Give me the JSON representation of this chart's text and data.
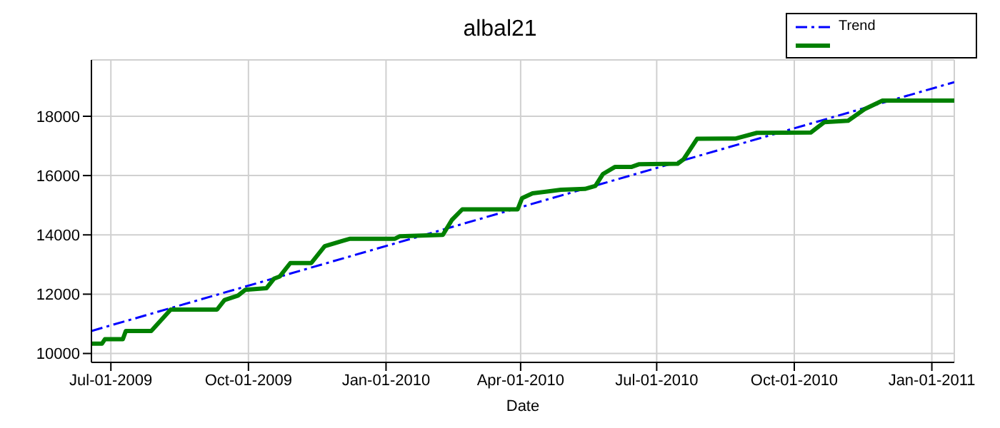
{
  "chart_data": {
    "type": "line",
    "title": "albal21",
    "xlabel": "Date",
    "xlim": [
      "2009-06-18",
      "2011-01-16"
    ],
    "xticks": [
      {
        "value": "2009-07-01",
        "label": "Jul-01-2009"
      },
      {
        "value": "2009-10-01",
        "label": "Oct-01-2009"
      },
      {
        "value": "2010-01-01",
        "label": "Jan-01-2010"
      },
      {
        "value": "2010-04-01",
        "label": "Apr-01-2010"
      },
      {
        "value": "2010-07-01",
        "label": "Jul-01-2010"
      },
      {
        "value": "2010-10-01",
        "label": "Oct-01-2010"
      },
      {
        "value": "2011-01-01",
        "label": "Jan-01-2011"
      }
    ],
    "ylim": [
      9700,
      19900
    ],
    "yticks": [
      10000,
      12000,
      14000,
      16000,
      18000
    ],
    "grid": true,
    "legend": "top right",
    "series": [
      {
        "name": "Trend",
        "color": "#0000ff",
        "line_style": "dashed",
        "x": [
          "2009-06-18",
          "2011-01-16"
        ],
        "values": [
          10760,
          19150
        ]
      },
      {
        "color": "#008000",
        "line_style": "solid",
        "x": [
          "2009-06-18",
          "2009-06-25",
          "2009-06-27",
          "2009-07-09",
          "2009-07-11",
          "2009-07-28",
          "2009-08-10",
          "2009-09-10",
          "2009-09-15",
          "2009-09-24",
          "2009-09-29",
          "2009-10-13",
          "2009-10-18",
          "2009-10-22",
          "2009-10-29",
          "2009-11-12",
          "2009-11-21",
          "2009-12-03",
          "2009-12-08",
          "2010-01-07",
          "2010-01-10",
          "2010-02-08",
          "2010-02-14",
          "2010-02-21",
          "2010-03-30",
          "2010-04-02",
          "2010-04-09",
          "2010-04-28",
          "2010-05-14",
          "2010-05-21",
          "2010-05-26",
          "2010-06-03",
          "2010-06-14",
          "2010-06-19",
          "2010-07-15",
          "2010-07-19",
          "2010-07-28",
          "2010-08-23",
          "2010-09-06",
          "2010-10-12",
          "2010-10-21",
          "2010-11-06",
          "2010-11-17",
          "2010-11-29",
          "2011-01-16"
        ],
        "values": [
          10330,
          10330,
          10480,
          10480,
          10760,
          10760,
          11480,
          11480,
          11800,
          11950,
          12150,
          12200,
          12520,
          12600,
          13050,
          13050,
          13620,
          13800,
          13870,
          13870,
          13950,
          14000,
          14500,
          14860,
          14860,
          15240,
          15400,
          15520,
          15550,
          15650,
          16050,
          16290,
          16290,
          16380,
          16400,
          16550,
          17240,
          17250,
          17440,
          17450,
          17800,
          17850,
          18240,
          18530,
          18530
        ]
      }
    ]
  }
}
